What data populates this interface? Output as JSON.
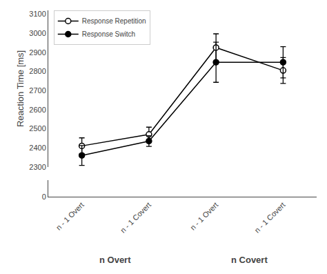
{
  "chart_data": {
    "type": "line",
    "ylabel": "Reaction Time [ms]",
    "categories": [
      "n - 1 Overt",
      "n - 1 Covert",
      "n - 1 Overt",
      "n - 1 Covert"
    ],
    "annotations": [
      "n Overt",
      "n Covert"
    ],
    "series": [
      {
        "name": "Response Repetition",
        "values": [
          2410,
          2470,
          2925,
          2805
        ],
        "errors": [
          42,
          38,
          72,
          68
        ],
        "color": "#000000",
        "marker": "open circle"
      },
      {
        "name": "Response Switch",
        "values": [
          2360,
          2435,
          2848,
          2848
        ],
        "errors": [
          52,
          28,
          105,
          82
        ],
        "color": "#000000",
        "marker": "filled circle"
      }
    ],
    "ylim": [
      2300,
      3120
    ],
    "yticks": [
      2300,
      2400,
      2500,
      2600,
      2700,
      2800,
      2900,
      3000,
      3100
    ],
    "y2lim": [
      -0.5,
      100
    ],
    "y2ticks": [
      0
    ],
    "grid": false,
    "legend": "upper left"
  }
}
